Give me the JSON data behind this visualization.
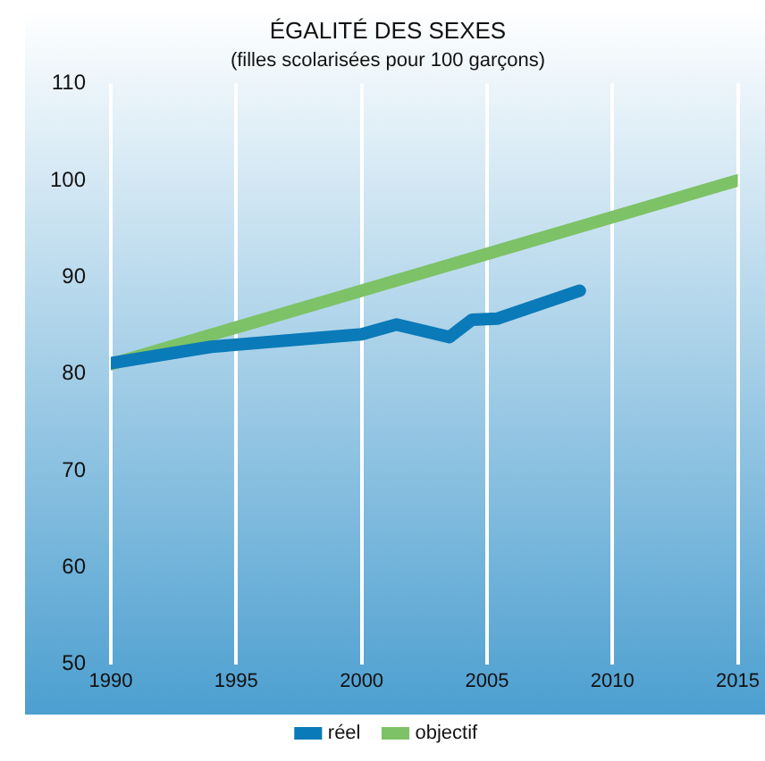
{
  "chart_data": {
    "type": "line",
    "title": "ÉGALITÉ DES SEXES",
    "subtitle": "(filles scolarisées pour 100 garçons)",
    "series": [
      {
        "name": "réel",
        "color": "#0a7ab8",
        "x": [
          1990,
          1994,
          2000,
          2001.4,
          2003.5,
          2004.4,
          2005.4,
          2008.7
        ],
        "values": [
          81.1,
          82.8,
          84.1,
          85.1,
          83.8,
          85.6,
          85.7,
          88.6
        ]
      },
      {
        "name": "objectif",
        "color": "#7dc266",
        "x": [
          1990,
          2015
        ],
        "values": [
          81,
          100
        ]
      }
    ],
    "xlim": [
      1990,
      2015
    ],
    "xticks": [
      1990,
      1995,
      2000,
      2005,
      2010,
      2015
    ],
    "ylim": [
      50,
      110
    ],
    "yticks": [
      50,
      60,
      70,
      80,
      90,
      100,
      110
    ],
    "grid": "x",
    "legend": "bottom",
    "marker": "none",
    "line_style": "solid"
  }
}
